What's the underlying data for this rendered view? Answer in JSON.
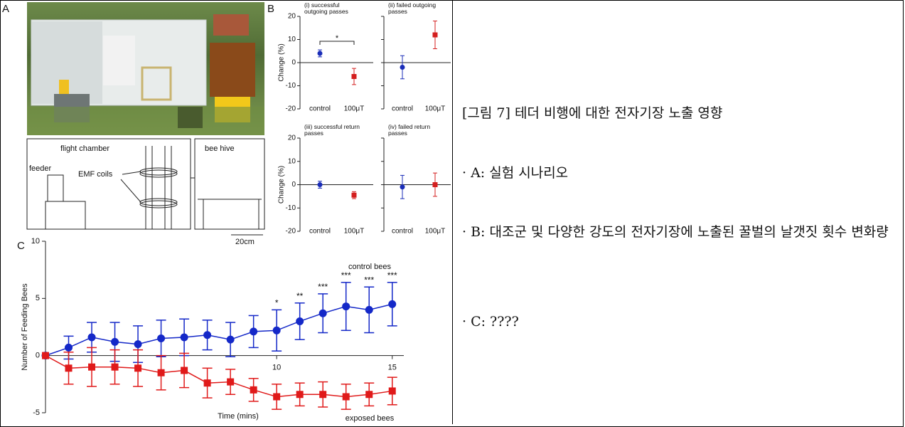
{
  "figure": {
    "panel_a": {
      "label": "A",
      "diagram": {
        "chamber": "flight chamber",
        "hive": "bee hive",
        "feeder": "feeder",
        "coils": "EMF coils",
        "scale": "20cm"
      }
    },
    "panel_b": {
      "label": "B",
      "y_label": "Change (%)",
      "ylim": [
        -20,
        20
      ],
      "yticks": [
        -20,
        -10,
        0,
        10,
        20
      ],
      "categories": [
        "control",
        "100μT"
      ],
      "colors": [
        "#1a2db8",
        "#d41f1f"
      ],
      "subplots": [
        {
          "title": "(i) successful outgoing passes",
          "values": [
            4,
            -6
          ],
          "errors": [
            1.5,
            3.5
          ],
          "annotation": "*"
        },
        {
          "title": "(ii) failed outgoing passes",
          "values": [
            -2,
            12
          ],
          "errors": [
            5,
            6
          ]
        },
        {
          "title": "(iii) successful return passes",
          "values": [
            0,
            -4.5
          ],
          "errors": [
            1.5,
            1.5
          ]
        },
        {
          "title": "(iv) failed return passes",
          "values": [
            -1,
            0
          ],
          "errors": [
            5,
            5
          ]
        }
      ]
    },
    "panel_c": {
      "label": "C",
      "y_label": "Number of Feeding Bees",
      "x_label": "Time (mins)",
      "xlim": [
        0,
        15.5
      ],
      "ylim": [
        -5.5,
        10
      ],
      "xticks": [
        10,
        15
      ],
      "yticks": [
        -5,
        0,
        5,
        10
      ],
      "x": [
        0,
        1,
        2,
        3,
        4,
        5,
        6,
        7,
        8,
        9,
        10,
        11,
        12,
        13,
        14,
        15
      ],
      "series": [
        {
          "name": "control bees",
          "color": "#1428c8",
          "marker": "circle",
          "values": [
            0,
            0.7,
            1.6,
            1.2,
            1.0,
            1.5,
            1.6,
            1.8,
            1.4,
            2.1,
            2.2,
            3.0,
            3.7,
            4.3,
            4.0,
            4.5
          ],
          "errors": [
            0,
            1.0,
            1.3,
            1.7,
            1.6,
            1.6,
            1.6,
            1.3,
            1.5,
            1.4,
            1.8,
            1.6,
            1.7,
            2.1,
            2.0,
            1.9
          ]
        },
        {
          "name": "exposed bees",
          "color": "#e01a1a",
          "marker": "square",
          "values": [
            0,
            -1.1,
            -1.0,
            -1.0,
            -1.1,
            -1.5,
            -1.3,
            -2.4,
            -2.3,
            -3.0,
            -3.6,
            -3.4,
            -3.4,
            -3.6,
            -3.4,
            -3.1
          ],
          "errors": [
            0,
            1.4,
            1.7,
            1.5,
            1.6,
            1.5,
            1.5,
            1.3,
            1.1,
            1.0,
            1.1,
            1.0,
            1.1,
            1.1,
            1.0,
            1.2
          ]
        }
      ],
      "significance": [
        null,
        null,
        null,
        null,
        null,
        null,
        null,
        null,
        null,
        null,
        "*",
        "**",
        "***",
        "***",
        "***",
        "***"
      ]
    }
  },
  "caption": {
    "title": "[그림 7] 테더 비행에 대한 전자기장 노출 영향",
    "items": [
      "· A: 실험 시나리오",
      "· B: 대조군 및 다양한 강도의 전자기장에 노출된 꿀벌의 날갯짓 횟수 변화량",
      "· C: ????"
    ]
  }
}
